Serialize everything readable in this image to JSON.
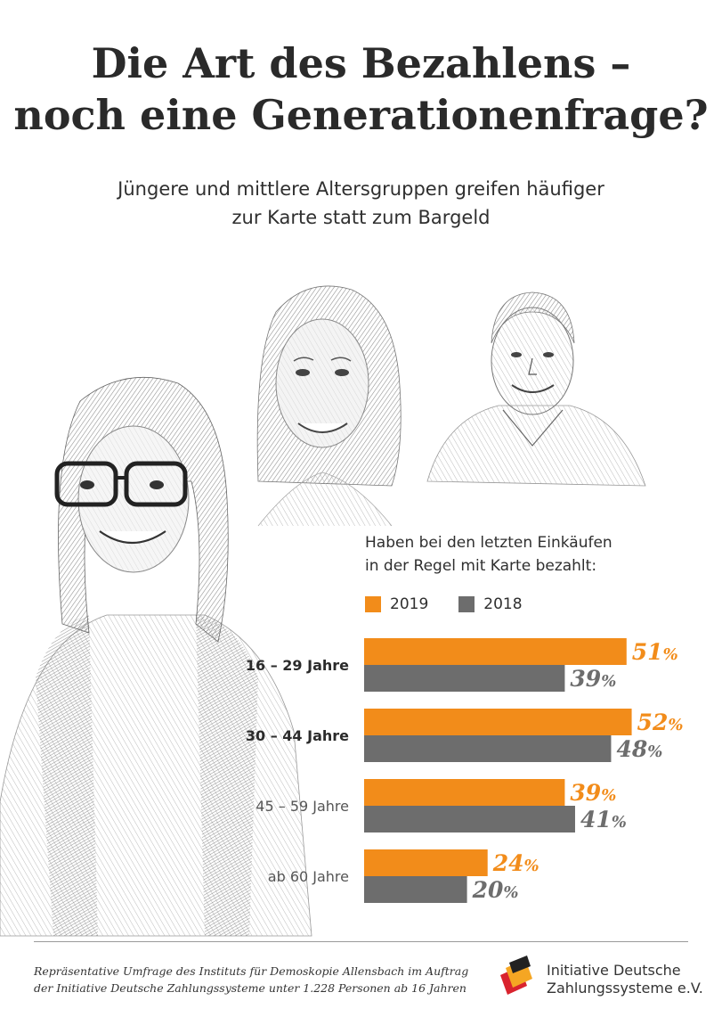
{
  "header": {
    "title_line1": "Die Art des Bezahlens –",
    "title_line2": "noch eine Generationenfrage?",
    "subtitle_line1": "Jüngere und mittlere Altersgruppen greifen häufiger",
    "subtitle_line2": "zur Karte statt zum Bargeld"
  },
  "chart_data": {
    "type": "bar",
    "orientation": "horizontal",
    "title_line1": "Haben bei den letzten Einkäufen",
    "title_line2": "in der Regel mit Karte bezahlt:",
    "categories": [
      "16 – 29 Jahre",
      "30 – 44 Jahre",
      "45 – 59 Jahre",
      "ab 60 Jahre"
    ],
    "category_bold": [
      true,
      true,
      false,
      false
    ],
    "series": [
      {
        "name": "2019",
        "color": "#f28c1a",
        "values": [
          51,
          52,
          39,
          24
        ],
        "labels": [
          "51",
          "52",
          "39",
          "24"
        ]
      },
      {
        "name": "2018",
        "color": "#6d6d6d",
        "values": [
          39,
          48,
          41,
          20
        ],
        "labels": [
          "39",
          "48",
          "41",
          "20"
        ]
      }
    ],
    "unit": "%",
    "legend_position": "top-left",
    "grid": false
  },
  "footer": {
    "source_line1": "Repräsentative Umfrage des Instituts für Demoskopie Allensbach im Auftrag",
    "source_line2": "der Initiative Deutsche Zahlungssysteme unter 1.228 Personen ab 16 Jahren",
    "org_line1": "Initiative Deutsche",
    "org_line2": "Zahlungssysteme e.V."
  }
}
